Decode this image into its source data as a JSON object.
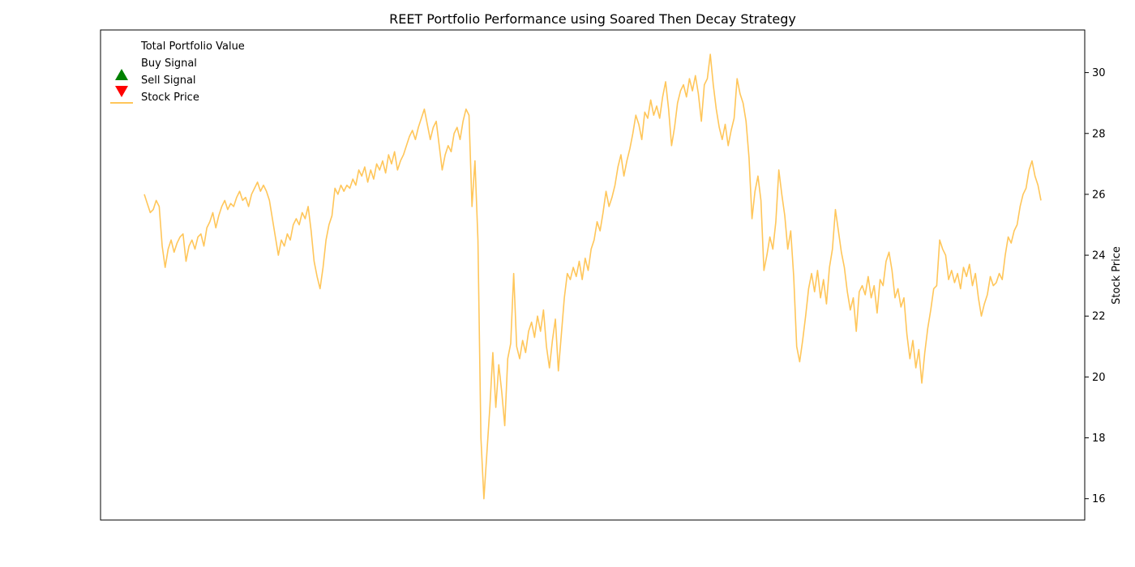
{
  "chart_data": {
    "type": "line",
    "title": "REET Portfolio Performance using Soared Then Decay Strategy",
    "xlabel": "",
    "ylabel": "Stock Price",
    "x_ticks_visible": false,
    "left_axis_ticks_visible": false,
    "right_axis": {
      "ylabel": "Stock Price",
      "ylim": [
        15.3,
        31.4
      ],
      "ticks": [
        16,
        18,
        20,
        22,
        24,
        26,
        28,
        30
      ]
    },
    "grid": false,
    "legend": {
      "placement": "top-left",
      "entries": [
        {
          "label": "Total Portfolio Value",
          "marker": "none",
          "color": "#1f77b4"
        },
        {
          "label": "Buy Signal",
          "marker": "triangle-up",
          "color": "#008000"
        },
        {
          "label": "Sell Signal",
          "marker": "triangle-down",
          "color": "#ff0000"
        },
        {
          "label": "Stock Price",
          "marker": "line",
          "color": "#ffc65a"
        }
      ]
    },
    "series": [
      {
        "name": "Stock Price",
        "color": "#ffc65a",
        "axis": "right",
        "values": [
          26.0,
          25.7,
          25.4,
          25.5,
          25.8,
          25.6,
          24.3,
          23.6,
          24.2,
          24.5,
          24.1,
          24.4,
          24.6,
          24.7,
          23.8,
          24.3,
          24.5,
          24.2,
          24.6,
          24.7,
          24.3,
          24.9,
          25.1,
          25.4,
          24.9,
          25.3,
          25.6,
          25.8,
          25.5,
          25.7,
          25.6,
          25.9,
          26.1,
          25.8,
          25.9,
          25.6,
          26.0,
          26.2,
          26.4,
          26.1,
          26.3,
          26.1,
          25.8,
          25.2,
          24.6,
          24.0,
          24.5,
          24.3,
          24.7,
          24.5,
          25.0,
          25.2,
          25.0,
          25.4,
          25.2,
          25.6,
          24.8,
          23.8,
          23.3,
          22.9,
          23.6,
          24.5,
          25.0,
          25.3,
          26.2,
          26.0,
          26.3,
          26.1,
          26.3,
          26.2,
          26.5,
          26.3,
          26.8,
          26.6,
          26.9,
          26.4,
          26.8,
          26.5,
          27.0,
          26.8,
          27.1,
          26.7,
          27.3,
          27.0,
          27.4,
          26.8,
          27.1,
          27.3,
          27.6,
          27.9,
          28.1,
          27.8,
          28.2,
          28.5,
          28.8,
          28.3,
          27.8,
          28.2,
          28.4,
          27.6,
          26.8,
          27.3,
          27.6,
          27.4,
          28.0,
          28.2,
          27.8,
          28.4,
          28.8,
          28.6,
          25.6,
          27.1,
          24.5,
          18.0,
          16.0,
          17.5,
          19.0,
          20.8,
          19.0,
          20.4,
          19.5,
          18.4,
          20.6,
          21.1,
          23.4,
          21.0,
          20.6,
          21.2,
          20.8,
          21.5,
          21.8,
          21.3,
          22.0,
          21.5,
          22.2,
          21.0,
          20.3,
          21.2,
          21.9,
          20.2,
          21.4,
          22.6,
          23.4,
          23.2,
          23.6,
          23.3,
          23.8,
          23.2,
          23.9,
          23.5,
          24.2,
          24.5,
          25.1,
          24.8,
          25.4,
          26.1,
          25.6,
          25.9,
          26.3,
          26.9,
          27.3,
          26.6,
          27.1,
          27.5,
          28.0,
          28.6,
          28.3,
          27.8,
          28.7,
          28.5,
          29.1,
          28.6,
          28.9,
          28.5,
          29.2,
          29.7,
          28.8,
          27.6,
          28.2,
          29.0,
          29.4,
          29.6,
          29.2,
          29.8,
          29.4,
          29.9,
          29.3,
          28.4,
          29.6,
          29.8,
          30.6,
          29.6,
          28.8,
          28.2,
          27.8,
          28.3,
          27.6,
          28.1,
          28.5,
          29.8,
          29.3,
          29.0,
          28.4,
          27.2,
          25.2,
          26.1,
          26.6,
          25.8,
          23.5,
          24.0,
          24.6,
          24.2,
          25.1,
          26.8,
          26.0,
          25.3,
          24.2,
          24.8,
          23.3,
          21.0,
          20.5,
          21.2,
          22.0,
          22.9,
          23.4,
          22.8,
          23.5,
          22.6,
          23.2,
          22.4,
          23.6,
          24.2,
          25.5,
          24.8,
          24.1,
          23.6,
          22.8,
          22.2,
          22.6,
          21.5,
          22.8,
          23.0,
          22.7,
          23.3,
          22.6,
          23.0,
          22.1,
          23.2,
          23.0,
          23.8,
          24.1,
          23.5,
          22.6,
          22.9,
          22.3,
          22.6,
          21.4,
          20.6,
          21.2,
          20.3,
          20.9,
          19.8,
          20.8,
          21.6,
          22.2,
          22.9,
          23.0,
          24.5,
          24.2,
          24.0,
          23.2,
          23.5,
          23.1,
          23.4,
          22.9,
          23.6,
          23.3,
          23.7,
          23.0,
          23.4,
          22.6,
          22.0,
          22.4,
          22.7,
          23.3,
          23.0,
          23.1,
          23.4,
          23.2,
          24.0,
          24.6,
          24.4,
          24.8,
          25.0,
          25.6,
          26.0,
          26.2,
          26.8,
          27.1,
          26.6,
          26.3,
          25.8
        ]
      }
    ]
  }
}
